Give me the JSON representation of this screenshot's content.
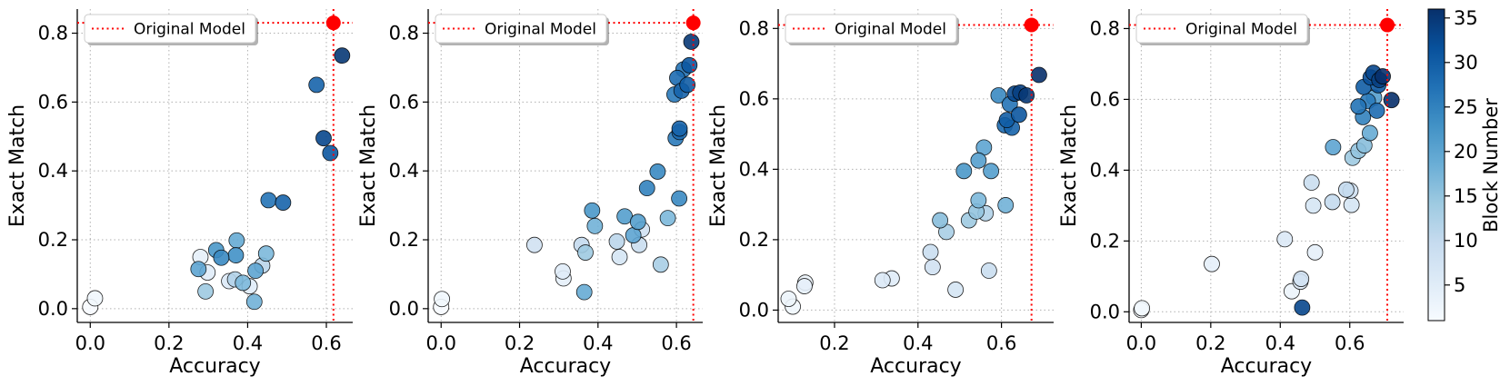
{
  "figure": {
    "legend_label": "Original Model",
    "colorbar_label": "Block Number",
    "colorbar_ticks": [
      "5",
      "10",
      "15",
      "20",
      "25",
      "30",
      "35"
    ],
    "colorbar_range": [
      1,
      36
    ],
    "reference_color": "#ff0000",
    "colormap": [
      "#f7fbff",
      "#deebf7",
      "#c6dbef",
      "#9ecae1",
      "#6baed6",
      "#4292c6",
      "#2171b5",
      "#08519c",
      "#08306b"
    ]
  },
  "chart_data": [
    {
      "type": "scatter",
      "xlabel": "Accuracy",
      "ylabel": "Exact Match",
      "xlim": [
        -0.033,
        0.667
      ],
      "ylim": [
        -0.04,
        0.87
      ],
      "xticks": [
        "0.0",
        "0.2",
        "0.4",
        "0.6"
      ],
      "yticks": [
        "0.0",
        "0.2",
        "0.4",
        "0.6",
        "0.8"
      ],
      "xtick_values": [
        0.0,
        0.2,
        0.4,
        0.6
      ],
      "ytick_values": [
        0.0,
        0.2,
        0.4,
        0.6,
        0.8
      ],
      "grid": true,
      "legend": "top-left",
      "original_model": {
        "x": 0.618,
        "y": 0.83
      },
      "points": [
        {
          "x": 0.0,
          "y": 0.005,
          "block": 1
        },
        {
          "x": 0.012,
          "y": 0.03,
          "block": 2
        },
        {
          "x": 0.275,
          "y": 0.115,
          "block": 20
        },
        {
          "x": 0.28,
          "y": 0.15,
          "block": 4
        },
        {
          "x": 0.293,
          "y": 0.05,
          "block": 14
        },
        {
          "x": 0.298,
          "y": 0.105,
          "block": 5
        },
        {
          "x": 0.32,
          "y": 0.17,
          "block": 22
        },
        {
          "x": 0.333,
          "y": 0.148,
          "block": 24
        },
        {
          "x": 0.353,
          "y": 0.08,
          "block": 6
        },
        {
          "x": 0.368,
          "y": 0.085,
          "block": 12
        },
        {
          "x": 0.37,
          "y": 0.155,
          "block": 23
        },
        {
          "x": 0.372,
          "y": 0.198,
          "block": 19
        },
        {
          "x": 0.388,
          "y": 0.075,
          "block": 17
        },
        {
          "x": 0.405,
          "y": 0.065,
          "block": 5
        },
        {
          "x": 0.417,
          "y": 0.02,
          "block": 18
        },
        {
          "x": 0.42,
          "y": 0.11,
          "block": 20
        },
        {
          "x": 0.437,
          "y": 0.125,
          "block": 11
        },
        {
          "x": 0.447,
          "y": 0.16,
          "block": 17
        },
        {
          "x": 0.453,
          "y": 0.315,
          "block": 27
        },
        {
          "x": 0.49,
          "y": 0.308,
          "block": 29
        },
        {
          "x": 0.575,
          "y": 0.65,
          "block": 29
        },
        {
          "x": 0.593,
          "y": 0.495,
          "block": 33
        },
        {
          "x": 0.61,
          "y": 0.452,
          "block": 31
        },
        {
          "x": 0.64,
          "y": 0.735,
          "block": 35
        }
      ]
    },
    {
      "type": "scatter",
      "xlabel": "Accuracy",
      "ylabel": "Exact Match",
      "xlim": [
        -0.033,
        0.667
      ],
      "ylim": [
        -0.04,
        0.87
      ],
      "xticks": [
        "0.0",
        "0.2",
        "0.4",
        "0.6"
      ],
      "yticks": [
        "0.0",
        "0.2",
        "0.4",
        "0.6",
        "0.8"
      ],
      "xtick_values": [
        0.0,
        0.2,
        0.4,
        0.6
      ],
      "ytick_values": [
        0.0,
        0.2,
        0.4,
        0.6,
        0.8
      ],
      "grid": true,
      "legend": "top-left",
      "original_model": {
        "x": 0.643,
        "y": 0.83
      },
      "points": [
        {
          "x": 0.0,
          "y": 0.005,
          "block": 1
        },
        {
          "x": 0.002,
          "y": 0.028,
          "block": 2
        },
        {
          "x": 0.238,
          "y": 0.185,
          "block": 8
        },
        {
          "x": 0.31,
          "y": 0.108,
          "block": 5
        },
        {
          "x": 0.312,
          "y": 0.088,
          "block": 4
        },
        {
          "x": 0.358,
          "y": 0.185,
          "block": 10
        },
        {
          "x": 0.365,
          "y": 0.048,
          "block": 19
        },
        {
          "x": 0.368,
          "y": 0.163,
          "block": 14
        },
        {
          "x": 0.385,
          "y": 0.285,
          "block": 22
        },
        {
          "x": 0.392,
          "y": 0.24,
          "block": 18
        },
        {
          "x": 0.448,
          "y": 0.195,
          "block": 11
        },
        {
          "x": 0.455,
          "y": 0.15,
          "block": 7
        },
        {
          "x": 0.468,
          "y": 0.268,
          "block": 21
        },
        {
          "x": 0.49,
          "y": 0.213,
          "block": 20
        },
        {
          "x": 0.502,
          "y": 0.252,
          "block": 21
        },
        {
          "x": 0.505,
          "y": 0.185,
          "block": 9
        },
        {
          "x": 0.512,
          "y": 0.23,
          "block": 8
        },
        {
          "x": 0.525,
          "y": 0.35,
          "block": 25
        },
        {
          "x": 0.552,
          "y": 0.398,
          "block": 24
        },
        {
          "x": 0.56,
          "y": 0.128,
          "block": 13
        },
        {
          "x": 0.578,
          "y": 0.263,
          "block": 17
        },
        {
          "x": 0.595,
          "y": 0.622,
          "block": 26
        },
        {
          "x": 0.598,
          "y": 0.495,
          "block": 26
        },
        {
          "x": 0.602,
          "y": 0.67,
          "block": 28
        },
        {
          "x": 0.607,
          "y": 0.32,
          "block": 24
        },
        {
          "x": 0.608,
          "y": 0.513,
          "block": 28
        },
        {
          "x": 0.608,
          "y": 0.523,
          "block": 29
        },
        {
          "x": 0.613,
          "y": 0.633,
          "block": 29
        },
        {
          "x": 0.618,
          "y": 0.695,
          "block": 27
        },
        {
          "x": 0.628,
          "y": 0.65,
          "block": 30
        },
        {
          "x": 0.633,
          "y": 0.707,
          "block": 31
        },
        {
          "x": 0.638,
          "y": 0.775,
          "block": 35
        }
      ]
    },
    {
      "type": "scatter",
      "xlabel": "Accuracy",
      "ylabel": "Exact Match",
      "xlim": [
        0.065,
        0.725
      ],
      "ylim": [
        -0.035,
        0.855
      ],
      "xticks": [
        "0.2",
        "0.4",
        "0.6"
      ],
      "yticks": [
        "0.0",
        "0.2",
        "0.4",
        "0.6",
        "0.8"
      ],
      "xtick_values": [
        0.2,
        0.4,
        0.6
      ],
      "ytick_values": [
        0.0,
        0.2,
        0.4,
        0.6,
        0.8
      ],
      "grid": true,
      "legend": "top-left",
      "original_model": {
        "x": 0.672,
        "y": 0.81
      },
      "points": [
        {
          "x": 0.09,
          "y": 0.032,
          "block": 3
        },
        {
          "x": 0.1,
          "y": 0.01,
          "block": 2
        },
        {
          "x": 0.128,
          "y": 0.068,
          "block": 4
        },
        {
          "x": 0.13,
          "y": 0.078,
          "block": 3
        },
        {
          "x": 0.315,
          "y": 0.085,
          "block": 6
        },
        {
          "x": 0.337,
          "y": 0.09,
          "block": 5
        },
        {
          "x": 0.43,
          "y": 0.165,
          "block": 9
        },
        {
          "x": 0.435,
          "y": 0.122,
          "block": 8
        },
        {
          "x": 0.453,
          "y": 0.255,
          "block": 16
        },
        {
          "x": 0.468,
          "y": 0.222,
          "block": 13
        },
        {
          "x": 0.49,
          "y": 0.058,
          "block": 7
        },
        {
          "x": 0.51,
          "y": 0.395,
          "block": 22
        },
        {
          "x": 0.522,
          "y": 0.255,
          "block": 14
        },
        {
          "x": 0.54,
          "y": 0.28,
          "block": 15
        },
        {
          "x": 0.545,
          "y": 0.312,
          "block": 17
        },
        {
          "x": 0.545,
          "y": 0.425,
          "block": 21
        },
        {
          "x": 0.558,
          "y": 0.462,
          "block": 20
        },
        {
          "x": 0.562,
          "y": 0.275,
          "block": 12
        },
        {
          "x": 0.57,
          "y": 0.112,
          "block": 9
        },
        {
          "x": 0.575,
          "y": 0.395,
          "block": 21
        },
        {
          "x": 0.593,
          "y": 0.61,
          "block": 24
        },
        {
          "x": 0.608,
          "y": 0.525,
          "block": 28
        },
        {
          "x": 0.61,
          "y": 0.298,
          "block": 18
        },
        {
          "x": 0.613,
          "y": 0.54,
          "block": 30
        },
        {
          "x": 0.62,
          "y": 0.585,
          "block": 27
        },
        {
          "x": 0.625,
          "y": 0.518,
          "block": 29
        },
        {
          "x": 0.632,
          "y": 0.615,
          "block": 33
        },
        {
          "x": 0.642,
          "y": 0.555,
          "block": 31
        },
        {
          "x": 0.645,
          "y": 0.618,
          "block": 34
        },
        {
          "x": 0.66,
          "y": 0.61,
          "block": 35
        },
        {
          "x": 0.69,
          "y": 0.668,
          "block": 36
        }
      ]
    },
    {
      "type": "scatter",
      "xlabel": "Accuracy",
      "ylabel": "Exact Match",
      "xlim": [
        -0.035,
        0.755
      ],
      "ylim": [
        -0.03,
        0.855
      ],
      "xticks": [
        "0.0",
        "0.2",
        "0.4",
        "0.6"
      ],
      "yticks": [
        "0.0",
        "0.2",
        "0.4",
        "0.6",
        "0.8"
      ],
      "xtick_values": [
        0.0,
        0.2,
        0.4,
        0.6
      ],
      "ytick_values": [
        0.0,
        0.2,
        0.4,
        0.6,
        0.8
      ],
      "grid": true,
      "legend": "top-left",
      "original_model": {
        "x": 0.708,
        "y": 0.81
      },
      "points": [
        {
          "x": 0.0,
          "y": 0.005,
          "block": 1
        },
        {
          "x": 0.002,
          "y": 0.01,
          "block": 2
        },
        {
          "x": 0.203,
          "y": 0.135,
          "block": 4
        },
        {
          "x": 0.413,
          "y": 0.205,
          "block": 6
        },
        {
          "x": 0.433,
          "y": 0.058,
          "block": 3
        },
        {
          "x": 0.458,
          "y": 0.085,
          "block": 5
        },
        {
          "x": 0.46,
          "y": 0.093,
          "block": 8
        },
        {
          "x": 0.463,
          "y": 0.012,
          "block": 33
        },
        {
          "x": 0.49,
          "y": 0.365,
          "block": 9
        },
        {
          "x": 0.495,
          "y": 0.3,
          "block": 7
        },
        {
          "x": 0.5,
          "y": 0.168,
          "block": 4
        },
        {
          "x": 0.55,
          "y": 0.31,
          "block": 10
        },
        {
          "x": 0.552,
          "y": 0.465,
          "block": 20
        },
        {
          "x": 0.59,
          "y": 0.345,
          "block": 10
        },
        {
          "x": 0.602,
          "y": 0.342,
          "block": 8
        },
        {
          "x": 0.605,
          "y": 0.302,
          "block": 7
        },
        {
          "x": 0.608,
          "y": 0.435,
          "block": 14
        },
        {
          "x": 0.625,
          "y": 0.58,
          "block": 27
        },
        {
          "x": 0.625,
          "y": 0.455,
          "block": 15
        },
        {
          "x": 0.638,
          "y": 0.55,
          "block": 25
        },
        {
          "x": 0.64,
          "y": 0.635,
          "block": 30
        },
        {
          "x": 0.642,
          "y": 0.47,
          "block": 16
        },
        {
          "x": 0.652,
          "y": 0.595,
          "block": 26
        },
        {
          "x": 0.658,
          "y": 0.505,
          "block": 19
        },
        {
          "x": 0.66,
          "y": 0.662,
          "block": 32
        },
        {
          "x": 0.668,
          "y": 0.675,
          "block": 33
        },
        {
          "x": 0.67,
          "y": 0.605,
          "block": 21
        },
        {
          "x": 0.678,
          "y": 0.568,
          "block": 28
        },
        {
          "x": 0.682,
          "y": 0.64,
          "block": 31
        },
        {
          "x": 0.685,
          "y": 0.655,
          "block": 34
        },
        {
          "x": 0.695,
          "y": 0.665,
          "block": 36
        },
        {
          "x": 0.72,
          "y": 0.598,
          "block": 36
        }
      ]
    }
  ]
}
